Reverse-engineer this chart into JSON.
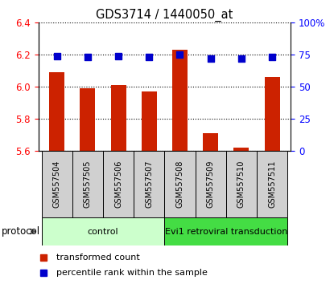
{
  "title": "GDS3714 / 1440050_at",
  "samples": [
    "GSM557504",
    "GSM557505",
    "GSM557506",
    "GSM557507",
    "GSM557508",
    "GSM557509",
    "GSM557510",
    "GSM557511"
  ],
  "transformed_counts": [
    6.09,
    5.99,
    6.01,
    5.97,
    6.23,
    5.71,
    5.62,
    6.06
  ],
  "percentile_ranks": [
    74,
    73,
    74,
    73,
    75,
    72,
    72,
    73
  ],
  "ylim_left": [
    5.6,
    6.4
  ],
  "ylim_right": [
    0,
    100
  ],
  "yticks_left": [
    5.6,
    5.8,
    6.0,
    6.2,
    6.4
  ],
  "yticks_right": [
    0,
    25,
    50,
    75,
    100
  ],
  "bar_color": "#cc2200",
  "dot_color": "#0000cc",
  "grid_color": "#000000",
  "protocol_groups": [
    {
      "label": "control",
      "start": 0,
      "end": 3,
      "color": "#ccffcc"
    },
    {
      "label": "Evi1 retroviral transduction",
      "start": 4,
      "end": 7,
      "color": "#44dd44"
    }
  ],
  "protocol_label": "protocol",
  "legend_items": [
    {
      "label": "transformed count",
      "color": "#cc2200"
    },
    {
      "label": "percentile rank within the sample",
      "color": "#0000cc"
    }
  ],
  "bar_width": 0.5,
  "dot_size": 30
}
